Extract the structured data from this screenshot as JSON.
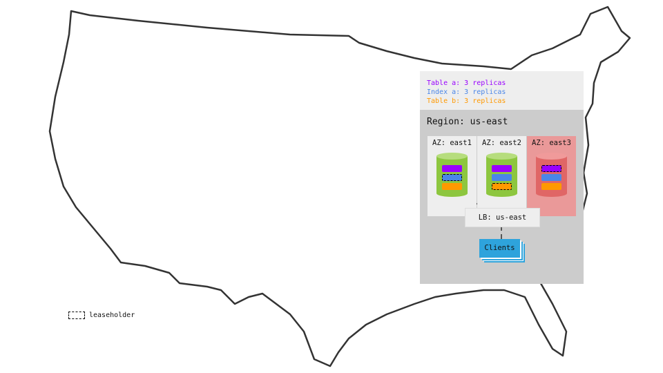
{
  "legend": {
    "items": [
      {
        "label": "Table a: 3 replicas",
        "color": "#9900ff"
      },
      {
        "label": "Index a: 3 replicas",
        "color": "#4a86e8"
      },
      {
        "label": "Table b: 3 replicas",
        "color": "#ff9900"
      }
    ]
  },
  "region": {
    "title": "Region: us-east",
    "zones": [
      {
        "label": "AZ: east1",
        "status": "up",
        "leaseholder": "Index a"
      },
      {
        "label": "AZ: east2",
        "status": "up",
        "leaseholder": "Table b"
      },
      {
        "label": "AZ: east3",
        "status": "down",
        "leaseholder": "Table a"
      }
    ],
    "lb": "LB: us-east",
    "clients": "Clients"
  },
  "key": {
    "leaseholder": "leaseholder"
  },
  "colors": {
    "node_up": "#8dc63f",
    "node_down": "#e06666",
    "zone_down_bg": "#ea9999",
    "clients": "#2ea3dc"
  }
}
